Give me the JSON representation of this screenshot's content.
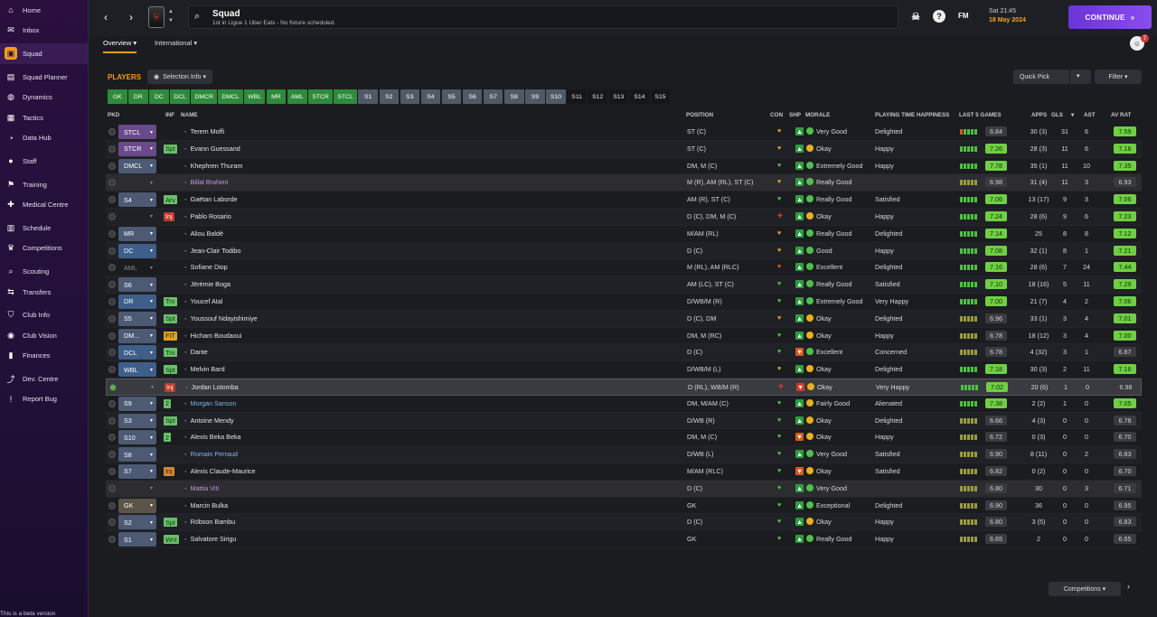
{
  "sidebar": {
    "items": [
      {
        "label": "Home",
        "icon": "home-icon",
        "glyph": "⌂"
      },
      {
        "label": "Inbox",
        "icon": "inbox-icon",
        "glyph": "✉"
      },
      {
        "label": "Squad",
        "icon": "shirt-icon",
        "glyph": "▣",
        "active": true
      },
      {
        "label": "Squad Planner",
        "icon": "planner-icon",
        "glyph": "▤"
      },
      {
        "label": "Dynamics",
        "icon": "dynamics-icon",
        "glyph": "◍"
      },
      {
        "label": "Tactics",
        "icon": "tactics-icon",
        "glyph": "▦"
      },
      {
        "label": "Data Hub",
        "icon": "data-hub-icon",
        "glyph": "◔"
      },
      {
        "label": "Staff",
        "icon": "staff-icon",
        "glyph": "●"
      },
      {
        "label": "Training",
        "icon": "training-icon",
        "glyph": "⚑"
      },
      {
        "label": "Medical Centre",
        "icon": "medical-icon",
        "glyph": "✚"
      },
      {
        "label": "Schedule",
        "icon": "schedule-icon",
        "glyph": "▥"
      },
      {
        "label": "Competitions",
        "icon": "trophy-icon",
        "glyph": "♛"
      },
      {
        "label": "Scouting",
        "icon": "scouting-icon",
        "glyph": "⌕"
      },
      {
        "label": "Transfers",
        "icon": "transfers-icon",
        "glyph": "⇆"
      },
      {
        "label": "Club Info",
        "icon": "club-info-icon",
        "glyph": "⛉"
      },
      {
        "label": "Club Vision",
        "icon": "club-vision-icon",
        "glyph": "◉"
      },
      {
        "label": "Finances",
        "icon": "finances-icon",
        "glyph": "▮"
      },
      {
        "label": "Dev. Centre",
        "icon": "dev-centre-icon",
        "glyph": "⤴"
      },
      {
        "label": "Report Bug",
        "icon": "report-bug-icon",
        "glyph": "!"
      }
    ],
    "beta_note": "This is a beta version"
  },
  "header": {
    "back": "‹",
    "forward": "›",
    "title": "Squad",
    "subtitle": "1st in Ligue 1 Uber Eats - No fixture scheduled.",
    "date_time": "Sat 21:45",
    "date": "18 May 2024",
    "continue_label": "CONTINUE",
    "continue_arrows": "»",
    "fm_label": "FM",
    "notification_count": "7"
  },
  "tabs": [
    {
      "label": "Overview ▾",
      "active": true
    },
    {
      "label": "International ▾",
      "active": false
    }
  ],
  "panel": {
    "title": "PLAYERS",
    "selection_info": "Selection Info ▾",
    "quick_pick": "Quick Pick",
    "filter": "Filter ▾",
    "competitions": "Competitions ▾",
    "next": "›"
  },
  "chips": [
    {
      "label": "GK",
      "style": "g"
    },
    {
      "label": "DR",
      "style": "g"
    },
    {
      "label": "DC",
      "style": "g"
    },
    {
      "label": "DCL",
      "style": "g"
    },
    {
      "label": "DMCR",
      "style": "g"
    },
    {
      "label": "DMCL",
      "style": "g"
    },
    {
      "label": "WBL",
      "style": "g"
    },
    {
      "label": "MR",
      "style": "g"
    },
    {
      "label": "AML",
      "style": "g"
    },
    {
      "label": "STCR",
      "style": "g"
    },
    {
      "label": "STCL",
      "style": "g"
    },
    {
      "label": "S1",
      "style": "s"
    },
    {
      "label": "S2",
      "style": "s"
    },
    {
      "label": "S3",
      "style": "s"
    },
    {
      "label": "S4",
      "style": "s"
    },
    {
      "label": "S5",
      "style": "s"
    },
    {
      "label": "S6",
      "style": "s"
    },
    {
      "label": "S7",
      "style": "s"
    },
    {
      "label": "S8",
      "style": "s"
    },
    {
      "label": "S9",
      "style": "s"
    },
    {
      "label": "S10",
      "style": "s"
    },
    {
      "label": "S11",
      "style": "d"
    },
    {
      "label": "S12",
      "style": "d"
    },
    {
      "label": "S13",
      "style": "d"
    },
    {
      "label": "S14",
      "style": "d"
    },
    {
      "label": "S15",
      "style": "d"
    }
  ],
  "columns": {
    "pkd": "PKD",
    "inf": "INF",
    "name": "NAME",
    "position": "POSITION",
    "con": "CON",
    "shp": "SHP",
    "morale": "MORALE",
    "pth": "PLAYING TIME HAPPINESS",
    "last5": "LAST 5 GAMES",
    "apps": "APPS",
    "gls": "GLS",
    "sort": "▾",
    "ast": "AST",
    "avrat": "AV RAT"
  },
  "players": [
    {
      "pkd": "STCL",
      "pt": "atk",
      "inf": "",
      "it": "",
      "name": "Terem Moffi",
      "nt": "",
      "pos": "ST (C)",
      "con": "♥",
      "cc": "#d9a030",
      "shp": "▲",
      "sc": "#2e9e3f",
      "morale": "Very Good",
      "mc": "#4ec04e",
      "pth": "Delighted",
      "form": [
        "#d65a1e",
        "#4fc040",
        "#4fc040",
        "#4fc040",
        "#4fc040"
      ],
      "l5": "6.84",
      "l5hi": false,
      "apps": "30 (3)",
      "gls": "31",
      "ast": "6",
      "avr": "7.59",
      "avrhi": true
    },
    {
      "pkd": "STCR",
      "pt": "atk",
      "inf": "Spt",
      "it": "green",
      "name": "Evann Guessand",
      "nt": "",
      "pos": "ST (C)",
      "con": "♥",
      "cc": "#d9a030",
      "shp": "▲",
      "sc": "#2e9e3f",
      "morale": "Okay",
      "mc": "#e6b020",
      "pth": "Happy",
      "form": [
        "#4fc040",
        "#4fc040",
        "#4fc040",
        "#4fc040",
        "#4fc040"
      ],
      "l5": "7.26",
      "l5hi": true,
      "apps": "28 (3)",
      "gls": "11",
      "ast": "6",
      "avr": "7.16",
      "avrhi": true
    },
    {
      "pkd": "DMCL",
      "pt": "mid",
      "inf": "",
      "it": "",
      "name": "Khephren Thuram",
      "nt": "",
      "pos": "DM, M (C)",
      "con": "♥",
      "cc": "#4fc040",
      "shp": "▲",
      "sc": "#2e9e3f",
      "morale": "Extremely Good",
      "mc": "#4ec04e",
      "pth": "Happy",
      "form": [
        "#4fc040",
        "#4fc040",
        "#4fc040",
        "#4fc040",
        "#4fc040"
      ],
      "l5": "7.78",
      "l5hi": true,
      "apps": "35 (1)",
      "gls": "11",
      "ast": "10",
      "avr": "7.35",
      "avrhi": true
    },
    {
      "pkd": "",
      "pt": "none",
      "inf": "",
      "it": "",
      "name": "Billal Brahimi",
      "nt": "loan",
      "pos": "M (R), AM (RL), ST (C)",
      "con": "♥",
      "cc": "#d9a030",
      "shp": "▲",
      "sc": "#2e9e3f",
      "morale": "Really Good",
      "mc": "#4ec04e",
      "pth": "",
      "form": [
        "#9a9a40",
        "#9a9a40",
        "#9a9a40",
        "#9a9a40",
        "#9a9a40"
      ],
      "l5": "6.98",
      "l5hi": false,
      "apps": "31 (4)",
      "gls": "11",
      "ast": "3",
      "avr": "6.93",
      "avrhi": false
    },
    {
      "pkd": "S4",
      "pt": "mid",
      "inf": "Arv",
      "it": "green",
      "name": "Gaëtan Laborde",
      "nt": "",
      "pos": "AM (R), ST (C)",
      "con": "♥",
      "cc": "#4fc040",
      "shp": "▲",
      "sc": "#2e9e3f",
      "morale": "Really Good",
      "mc": "#4ec04e",
      "pth": "Satisfied",
      "form": [
        "#4fc040",
        "#4fc040",
        "#4fc040",
        "#4fc040",
        "#4fc040"
      ],
      "l5": "7.06",
      "l5hi": true,
      "apps": "13 (17)",
      "gls": "9",
      "ast": "3",
      "avr": "7.06",
      "avrhi": true
    },
    {
      "pkd": "",
      "pt": "none",
      "inf": "Inj",
      "it": "red",
      "name": "Pablo Rosario",
      "nt": "",
      "pos": "D (C), DM, M (C)",
      "con": "✚",
      "cc": "#d23a2a",
      "shp": "▲",
      "sc": "#2e9e3f",
      "morale": "Okay",
      "mc": "#e6b020",
      "pth": "Happy",
      "form": [
        "#4fc040",
        "#4fc040",
        "#4fc040",
        "#4fc040",
        "#4fc040"
      ],
      "l5": "7.24",
      "l5hi": true,
      "apps": "28 (6)",
      "gls": "9",
      "ast": "6",
      "avr": "7.23",
      "avrhi": true
    },
    {
      "pkd": "MR",
      "pt": "mid",
      "inf": "",
      "it": "",
      "name": "Aliou Baldé",
      "nt": "",
      "pos": "M/AM (RL)",
      "con": "♥",
      "cc": "#d9a030",
      "shp": "▲",
      "sc": "#2e9e3f",
      "morale": "Really Good",
      "mc": "#4ec04e",
      "pth": "Delighted",
      "form": [
        "#4fc040",
        "#4fc040",
        "#4fc040",
        "#4fc040",
        "#4fc040"
      ],
      "l5": "7.14",
      "l5hi": true,
      "apps": "25",
      "gls": "8",
      "ast": "8",
      "avr": "7.12",
      "avrhi": true
    },
    {
      "pkd": "DC",
      "pt": "def",
      "inf": "",
      "it": "",
      "name": "Jean-Clair Todibo",
      "nt": "",
      "pos": "D (C)",
      "con": "♥",
      "cc": "#d9a030",
      "shp": "▲",
      "sc": "#2e9e3f",
      "morale": "Good",
      "mc": "#4ec04e",
      "pth": "Happy",
      "form": [
        "#4fc040",
        "#4fc040",
        "#4fc040",
        "#4fc040",
        "#4fc040"
      ],
      "l5": "7.08",
      "l5hi": true,
      "apps": "32 (1)",
      "gls": "8",
      "ast": "1",
      "avr": "7.21",
      "avrhi": true
    },
    {
      "pkd": "AML",
      "pt": "none",
      "inf": "",
      "it": "",
      "name": "Sofiane Diop",
      "nt": "",
      "pos": "M (RL), AM (RLC)",
      "con": "♥",
      "cc": "#d65a1e",
      "shp": "▲",
      "sc": "#2e9e3f",
      "morale": "Excellent",
      "mc": "#4ec04e",
      "pth": "Delighted",
      "form": [
        "#4fc040",
        "#4fc040",
        "#4fc040",
        "#4fc040",
        "#4fc040"
      ],
      "l5": "7.16",
      "l5hi": true,
      "apps": "28 (6)",
      "gls": "7",
      "ast": "24",
      "avr": "7.44",
      "avrhi": true
    },
    {
      "pkd": "S6",
      "pt": "mid",
      "inf": "",
      "it": "",
      "name": "Jérémie Boga",
      "nt": "",
      "pos": "AM (LC), ST (C)",
      "con": "♥",
      "cc": "#4fc040",
      "shp": "▲",
      "sc": "#2e9e3f",
      "morale": "Really Good",
      "mc": "#4ec04e",
      "pth": "Satisfied",
      "form": [
        "#4fc040",
        "#4fc040",
        "#4fc040",
        "#4fc040",
        "#4fc040"
      ],
      "l5": "7.10",
      "l5hi": true,
      "apps": "18 (16)",
      "gls": "5",
      "ast": "11",
      "avr": "7.29",
      "avrhi": true
    },
    {
      "pkd": "DR",
      "pt": "def",
      "inf": "Trn",
      "it": "green",
      "name": "Youcef Atal",
      "nt": "",
      "pos": "D/WB/M (R)",
      "con": "♥",
      "cc": "#4fc040",
      "shp": "▲",
      "sc": "#2e9e3f",
      "morale": "Extremely Good",
      "mc": "#4ec04e",
      "pth": "Very Happy",
      "form": [
        "#4fc040",
        "#4fc040",
        "#4fc040",
        "#4fc040",
        "#4fc040"
      ],
      "l5": "7.00",
      "l5hi": true,
      "apps": "21 (7)",
      "gls": "4",
      "ast": "2",
      "avr": "7.06",
      "avrhi": true
    },
    {
      "pkd": "S5",
      "pt": "mid",
      "inf": "Spt",
      "it": "green",
      "name": "Youssouf Ndayishimiye",
      "nt": "",
      "pos": "D (C), DM",
      "con": "♥",
      "cc": "#d9a030",
      "shp": "▲",
      "sc": "#2e9e3f",
      "morale": "Okay",
      "mc": "#e6b020",
      "pth": "Delighted",
      "form": [
        "#9a9a40",
        "#9a9a40",
        "#9a9a40",
        "#9a9a40",
        "#9a9a40"
      ],
      "l5": "6.96",
      "l5hi": false,
      "apps": "33 (1)",
      "gls": "3",
      "ast": "4",
      "avr": "7.01",
      "avrhi": true
    },
    {
      "pkd": "DM...",
      "pt": "mid",
      "inf": "FIT",
      "it": "orange",
      "name": "Hicham Boudaoui",
      "nt": "",
      "pos": "DM, M (RC)",
      "con": "♥",
      "cc": "#4fc040",
      "shp": "▲",
      "sc": "#2e9e3f",
      "morale": "Okay",
      "mc": "#e6b020",
      "pth": "Happy",
      "form": [
        "#9a9a40",
        "#9a9a40",
        "#9a9a40",
        "#9a9a40",
        "#9a9a40"
      ],
      "l5": "6.78",
      "l5hi": false,
      "apps": "18 (12)",
      "gls": "3",
      "ast": "4",
      "avr": "7.00",
      "avrhi": true
    },
    {
      "pkd": "DCL",
      "pt": "def",
      "inf": "Trn",
      "it": "green",
      "name": "Dante",
      "nt": "",
      "pos": "D (C)",
      "con": "♥",
      "cc": "#4fc040",
      "shp": "▼",
      "sc": "#d65a1e",
      "morale": "Excellent",
      "mc": "#4ec04e",
      "pth": "Concerned",
      "form": [
        "#9a9a40",
        "#9a9a40",
        "#9a9a40",
        "#9a9a40",
        "#9a9a40"
      ],
      "l5": "6.78",
      "l5hi": false,
      "apps": "4 (32)",
      "gls": "3",
      "ast": "1",
      "avr": "6.87",
      "avrhi": false
    },
    {
      "pkd": "WBL",
      "pt": "def",
      "inf": "Spt",
      "it": "green",
      "name": "Melvin Bard",
      "nt": "",
      "pos": "D/WB/M (L)",
      "con": "♥",
      "cc": "#d9a030",
      "shp": "▲",
      "sc": "#2e9e3f",
      "morale": "Okay",
      "mc": "#e6b020",
      "pth": "Delighted",
      "form": [
        "#4fc040",
        "#4fc040",
        "#4fc040",
        "#4fc040",
        "#4fc040"
      ],
      "l5": "7.18",
      "l5hi": true,
      "apps": "30 (3)",
      "gls": "2",
      "ast": "11",
      "avr": "7.16",
      "avrhi": true
    },
    {
      "pkd": "",
      "pt": "none",
      "inf": "Inj",
      "it": "red",
      "name": "Jordan Lotomba",
      "nt": "",
      "pos": "D (RL), WB/M (R)",
      "con": "✚",
      "cc": "#d23a2a",
      "shp": "▼",
      "sc": "#d23a2a",
      "morale": "Okay",
      "mc": "#e6b020",
      "pth": "Very Happy",
      "form": [
        "#4fc040",
        "#4fc040",
        "#4fc040",
        "#4fc040",
        "#4fc040"
      ],
      "l5": "7.02",
      "l5hi": true,
      "apps": "20 (6)",
      "gls": "1",
      "ast": "0",
      "avr": "6.98",
      "avrhi": false,
      "selected": true
    },
    {
      "pkd": "S9",
      "pt": "mid",
      "inf": "2",
      "it": "green",
      "name": "Morgan Sanson",
      "nt": "link",
      "pos": "DM, M/AM (C)",
      "con": "♥",
      "cc": "#4fc040",
      "shp": "▲",
      "sc": "#2e9e3f",
      "morale": "Fairly Good",
      "mc": "#e6b020",
      "pth": "Alienated",
      "form": [
        "#4fc040",
        "#4fc040",
        "#4fc040",
        "#4fc040",
        "#4fc040"
      ],
      "l5": "7.38",
      "l5hi": true,
      "apps": "2 (2)",
      "gls": "1",
      "ast": "0",
      "avr": "7.05",
      "avrhi": true
    },
    {
      "pkd": "S3",
      "pt": "mid",
      "inf": "Spt",
      "it": "green",
      "name": "Antoine Mendy",
      "nt": "",
      "pos": "D/WB (R)",
      "con": "♥",
      "cc": "#4fc040",
      "shp": "▲",
      "sc": "#2e9e3f",
      "morale": "Okay",
      "mc": "#e6b020",
      "pth": "Delighted",
      "form": [
        "#9a9a40",
        "#9a9a40",
        "#9a9a40",
        "#9a9a40",
        "#9a9a40"
      ],
      "l5": "6.66",
      "l5hi": false,
      "apps": "4 (3)",
      "gls": "0",
      "ast": "0",
      "avr": "6.78",
      "avrhi": false
    },
    {
      "pkd": "S10",
      "pt": "mid",
      "inf": "2",
      "it": "green",
      "name": "Alexis Beka Beka",
      "nt": "",
      "pos": "DM, M (C)",
      "con": "♥",
      "cc": "#4fc040",
      "shp": "▼",
      "sc": "#d65a1e",
      "morale": "Okay",
      "mc": "#e6b020",
      "pth": "Happy",
      "form": [
        "#9a9a40",
        "#9a9a40",
        "#9a9a40",
        "#9a9a40",
        "#9a9a40"
      ],
      "l5": "6.72",
      "l5hi": false,
      "apps": "0 (3)",
      "gls": "0",
      "ast": "0",
      "avr": "6.70",
      "avrhi": false
    },
    {
      "pkd": "S8",
      "pt": "mid",
      "inf": "",
      "it": "",
      "name": "Romain Perraud",
      "nt": "link",
      "pos": "D/WB (L)",
      "con": "♥",
      "cc": "#4fc040",
      "shp": "▲",
      "sc": "#2e9e3f",
      "morale": "Very Good",
      "mc": "#4ec04e",
      "pth": "Satisfied",
      "form": [
        "#9a9a40",
        "#9a9a40",
        "#9a9a40",
        "#9a9a40",
        "#9a9a40"
      ],
      "l5": "6.90",
      "l5hi": false,
      "apps": "8 (11)",
      "gls": "0",
      "ast": "2",
      "avr": "6.83",
      "avrhi": false
    },
    {
      "pkd": "S7",
      "pt": "mid",
      "inf": "Inj",
      "it": "tan",
      "name": "Alexis Claude-Maurice",
      "nt": "",
      "pos": "M/AM (RLC)",
      "con": "♥",
      "cc": "#4fc040",
      "shp": "▼",
      "sc": "#d65a1e",
      "morale": "Okay",
      "mc": "#e6b020",
      "pth": "Satisfied",
      "form": [
        "#9a9a40",
        "#9a9a40",
        "#9a9a40",
        "#9a9a40",
        "#9a9a40"
      ],
      "l5": "6.82",
      "l5hi": false,
      "apps": "0 (2)",
      "gls": "0",
      "ast": "0",
      "avr": "6.70",
      "avrhi": false
    },
    {
      "pkd": "",
      "pt": "none",
      "inf": "",
      "it": "",
      "name": "Mattia Viti",
      "nt": "loan",
      "pos": "D (C)",
      "con": "♥",
      "cc": "#4fc040",
      "shp": "▲",
      "sc": "#2e9e3f",
      "morale": "Very Good",
      "mc": "#4ec04e",
      "pth": "",
      "form": [
        "#9a9a40",
        "#9a9a40",
        "#9a9a40",
        "#9a9a40",
        "#9a9a40"
      ],
      "l5": "6.80",
      "l5hi": false,
      "apps": "30",
      "gls": "0",
      "ast": "3",
      "avr": "6.71",
      "avrhi": false
    },
    {
      "pkd": "GK",
      "pt": "gk",
      "inf": "",
      "it": "",
      "name": "Marcin Bulka",
      "nt": "",
      "pos": "GK",
      "con": "♥",
      "cc": "#4fc040",
      "shp": "▲",
      "sc": "#2e9e3f",
      "morale": "Exceptional",
      "mc": "#4ec04e",
      "pth": "Delighted",
      "form": [
        "#9a9a40",
        "#9a9a40",
        "#9a9a40",
        "#9a9a40",
        "#9a9a40"
      ],
      "l5": "6.90",
      "l5hi": false,
      "apps": "36",
      "gls": "0",
      "ast": "0",
      "avr": "6.95",
      "avrhi": false
    },
    {
      "pkd": "S2",
      "pt": "mid",
      "inf": "Spt",
      "it": "green",
      "name": "Róbson Bambu",
      "nt": "",
      "pos": "D (C)",
      "con": "♥",
      "cc": "#4fc040",
      "shp": "▲",
      "sc": "#2e9e3f",
      "morale": "Okay",
      "mc": "#e6b020",
      "pth": "Happy",
      "form": [
        "#9a9a40",
        "#9a9a40",
        "#9a9a40",
        "#9a9a40",
        "#9a9a40"
      ],
      "l5": "6.80",
      "l5hi": false,
      "apps": "3 (5)",
      "gls": "0",
      "ast": "0",
      "avr": "6.83",
      "avrhi": false
    },
    {
      "pkd": "S1",
      "pt": "mid",
      "inf": "Wnt",
      "it": "green",
      "name": "Salvatore Sirigu",
      "nt": "",
      "pos": "GK",
      "con": "♥",
      "cc": "#4fc040",
      "shp": "▲",
      "sc": "#2e9e3f",
      "morale": "Really Good",
      "mc": "#4ec04e",
      "pth": "Happy",
      "form": [
        "#9a9a40",
        "#9a9a40",
        "#9a9a40",
        "#9a9a40",
        "#9a9a40"
      ],
      "l5": "6.65",
      "l5hi": false,
      "apps": "2",
      "gls": "0",
      "ast": "0",
      "avr": "6.65",
      "avrhi": false
    }
  ]
}
